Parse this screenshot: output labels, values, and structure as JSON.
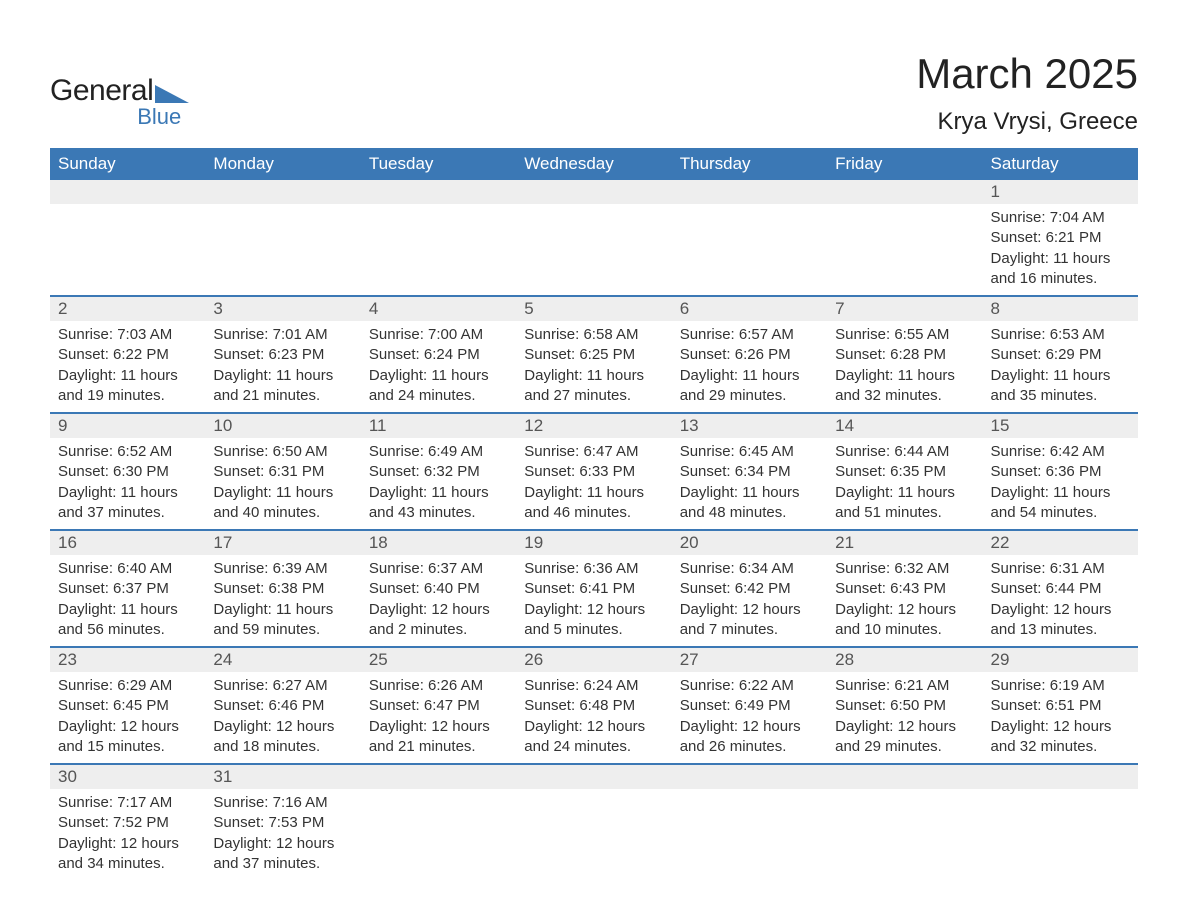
{
  "logo": {
    "word1": "General",
    "word2": "Blue",
    "tri_color": "#3b78b5"
  },
  "header": {
    "title": "March 2025",
    "subtitle": "Krya Vrysi, Greece"
  },
  "calendar": {
    "type": "calendar-table",
    "header_bg": "#3b78b5",
    "header_fg": "#ffffff",
    "daynum_bg": "#eeeeee",
    "row_divider_color": "#3b78b5",
    "text_color": "#333333",
    "font_family": "Arial",
    "title_fontsize": 42,
    "subtitle_fontsize": 24,
    "header_fontsize": 17,
    "body_fontsize": 15,
    "day_labels": [
      "Sunday",
      "Monday",
      "Tuesday",
      "Wednesday",
      "Thursday",
      "Friday",
      "Saturday"
    ],
    "weeks": [
      [
        {
          "blank": true
        },
        {
          "blank": true
        },
        {
          "blank": true
        },
        {
          "blank": true
        },
        {
          "blank": true
        },
        {
          "blank": true
        },
        {
          "day": 1,
          "sunrise": "7:04 AM",
          "sunset": "6:21 PM",
          "daylight": "11 hours and 16 minutes."
        }
      ],
      [
        {
          "day": 2,
          "sunrise": "7:03 AM",
          "sunset": "6:22 PM",
          "daylight": "11 hours and 19 minutes."
        },
        {
          "day": 3,
          "sunrise": "7:01 AM",
          "sunset": "6:23 PM",
          "daylight": "11 hours and 21 minutes."
        },
        {
          "day": 4,
          "sunrise": "7:00 AM",
          "sunset": "6:24 PM",
          "daylight": "11 hours and 24 minutes."
        },
        {
          "day": 5,
          "sunrise": "6:58 AM",
          "sunset": "6:25 PM",
          "daylight": "11 hours and 27 minutes."
        },
        {
          "day": 6,
          "sunrise": "6:57 AM",
          "sunset": "6:26 PM",
          "daylight": "11 hours and 29 minutes."
        },
        {
          "day": 7,
          "sunrise": "6:55 AM",
          "sunset": "6:28 PM",
          "daylight": "11 hours and 32 minutes."
        },
        {
          "day": 8,
          "sunrise": "6:53 AM",
          "sunset": "6:29 PM",
          "daylight": "11 hours and 35 minutes."
        }
      ],
      [
        {
          "day": 9,
          "sunrise": "6:52 AM",
          "sunset": "6:30 PM",
          "daylight": "11 hours and 37 minutes."
        },
        {
          "day": 10,
          "sunrise": "6:50 AM",
          "sunset": "6:31 PM",
          "daylight": "11 hours and 40 minutes."
        },
        {
          "day": 11,
          "sunrise": "6:49 AM",
          "sunset": "6:32 PM",
          "daylight": "11 hours and 43 minutes."
        },
        {
          "day": 12,
          "sunrise": "6:47 AM",
          "sunset": "6:33 PM",
          "daylight": "11 hours and 46 minutes."
        },
        {
          "day": 13,
          "sunrise": "6:45 AM",
          "sunset": "6:34 PM",
          "daylight": "11 hours and 48 minutes."
        },
        {
          "day": 14,
          "sunrise": "6:44 AM",
          "sunset": "6:35 PM",
          "daylight": "11 hours and 51 minutes."
        },
        {
          "day": 15,
          "sunrise": "6:42 AM",
          "sunset": "6:36 PM",
          "daylight": "11 hours and 54 minutes."
        }
      ],
      [
        {
          "day": 16,
          "sunrise": "6:40 AM",
          "sunset": "6:37 PM",
          "daylight": "11 hours and 56 minutes."
        },
        {
          "day": 17,
          "sunrise": "6:39 AM",
          "sunset": "6:38 PM",
          "daylight": "11 hours and 59 minutes."
        },
        {
          "day": 18,
          "sunrise": "6:37 AM",
          "sunset": "6:40 PM",
          "daylight": "12 hours and 2 minutes."
        },
        {
          "day": 19,
          "sunrise": "6:36 AM",
          "sunset": "6:41 PM",
          "daylight": "12 hours and 5 minutes."
        },
        {
          "day": 20,
          "sunrise": "6:34 AM",
          "sunset": "6:42 PM",
          "daylight": "12 hours and 7 minutes."
        },
        {
          "day": 21,
          "sunrise": "6:32 AM",
          "sunset": "6:43 PM",
          "daylight": "12 hours and 10 minutes."
        },
        {
          "day": 22,
          "sunrise": "6:31 AM",
          "sunset": "6:44 PM",
          "daylight": "12 hours and 13 minutes."
        }
      ],
      [
        {
          "day": 23,
          "sunrise": "6:29 AM",
          "sunset": "6:45 PM",
          "daylight": "12 hours and 15 minutes."
        },
        {
          "day": 24,
          "sunrise": "6:27 AM",
          "sunset": "6:46 PM",
          "daylight": "12 hours and 18 minutes."
        },
        {
          "day": 25,
          "sunrise": "6:26 AM",
          "sunset": "6:47 PM",
          "daylight": "12 hours and 21 minutes."
        },
        {
          "day": 26,
          "sunrise": "6:24 AM",
          "sunset": "6:48 PM",
          "daylight": "12 hours and 24 minutes."
        },
        {
          "day": 27,
          "sunrise": "6:22 AM",
          "sunset": "6:49 PM",
          "daylight": "12 hours and 26 minutes."
        },
        {
          "day": 28,
          "sunrise": "6:21 AM",
          "sunset": "6:50 PM",
          "daylight": "12 hours and 29 minutes."
        },
        {
          "day": 29,
          "sunrise": "6:19 AM",
          "sunset": "6:51 PM",
          "daylight": "12 hours and 32 minutes."
        }
      ],
      [
        {
          "day": 30,
          "sunrise": "7:17 AM",
          "sunset": "7:52 PM",
          "daylight": "12 hours and 34 minutes."
        },
        {
          "day": 31,
          "sunrise": "7:16 AM",
          "sunset": "7:53 PM",
          "daylight": "12 hours and 37 minutes."
        },
        {
          "blank": true
        },
        {
          "blank": true
        },
        {
          "blank": true
        },
        {
          "blank": true
        },
        {
          "blank": true
        }
      ]
    ],
    "labels": {
      "sunrise": "Sunrise:",
      "sunset": "Sunset:",
      "daylight": "Daylight:"
    }
  }
}
